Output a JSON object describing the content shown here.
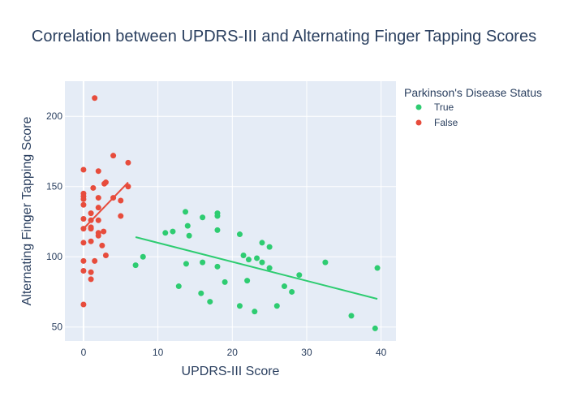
{
  "chart_data": {
    "type": "scatter",
    "title": "Correlation between UPDRS-III and Alternating Finger Tapping Scores",
    "xlabel": "UPDRS-III Score",
    "ylabel": "Alternating Finger Tapping Score",
    "xlim": [
      -2.5,
      42
    ],
    "ylim": [
      40,
      225
    ],
    "xticks": [
      0,
      10,
      20,
      30,
      40
    ],
    "yticks": [
      50,
      100,
      150,
      200
    ],
    "grid": true,
    "legend": {
      "title": "Parkinson's Disease Status",
      "placement": "top-right"
    },
    "series": [
      {
        "name": "True",
        "color": "#2ecc71",
        "points": [
          [
            7,
            94
          ],
          [
            8,
            100
          ],
          [
            11,
            117
          ],
          [
            12,
            118
          ],
          [
            12.8,
            79
          ],
          [
            13.7,
            132
          ],
          [
            14,
            122
          ],
          [
            13.8,
            95
          ],
          [
            14.2,
            115
          ],
          [
            15.8,
            74
          ],
          [
            16,
            128
          ],
          [
            16,
            96
          ],
          [
            17,
            68
          ],
          [
            18,
            131
          ],
          [
            18,
            129
          ],
          [
            18,
            119
          ],
          [
            18,
            93
          ],
          [
            19,
            82
          ],
          [
            21,
            116
          ],
          [
            21,
            65
          ],
          [
            21.5,
            101
          ],
          [
            22,
            83
          ],
          [
            22.2,
            98
          ],
          [
            23,
            61
          ],
          [
            23.3,
            99
          ],
          [
            24,
            110
          ],
          [
            24,
            96
          ],
          [
            25,
            107
          ],
          [
            25,
            92
          ],
          [
            26,
            65
          ],
          [
            27,
            79
          ],
          [
            28,
            75
          ],
          [
            29,
            87
          ],
          [
            32.5,
            96
          ],
          [
            36,
            58
          ],
          [
            39.2,
            49
          ],
          [
            39.5,
            92
          ]
        ],
        "trendline": [
          [
            7,
            114
          ],
          [
            39.5,
            70
          ]
        ]
      },
      {
        "name": "False",
        "color": "#e74c3c",
        "points": [
          [
            0,
            162
          ],
          [
            0,
            145
          ],
          [
            0,
            143
          ],
          [
            0,
            141
          ],
          [
            0,
            137
          ],
          [
            0,
            127
          ],
          [
            0,
            120
          ],
          [
            0,
            110
          ],
          [
            0,
            97
          ],
          [
            0,
            90
          ],
          [
            0,
            66
          ],
          [
            1,
            131
          ],
          [
            1,
            126
          ],
          [
            1,
            121
          ],
          [
            1,
            120
          ],
          [
            1,
            111
          ],
          [
            1,
            89
          ],
          [
            1,
            84
          ],
          [
            1.3,
            149
          ],
          [
            1.5,
            97
          ],
          [
            1.5,
            213
          ],
          [
            2,
            161
          ],
          [
            2,
            142
          ],
          [
            2,
            135
          ],
          [
            2,
            126
          ],
          [
            2,
            117
          ],
          [
            2,
            115
          ],
          [
            2.5,
            108
          ],
          [
            2.7,
            118
          ],
          [
            2.8,
            152
          ],
          [
            3,
            153
          ],
          [
            3,
            101
          ],
          [
            4,
            172
          ],
          [
            4,
            142
          ],
          [
            5,
            140
          ],
          [
            5,
            129
          ],
          [
            6,
            167
          ],
          [
            6,
            150
          ]
        ],
        "trendline": [
          [
            0,
            120
          ],
          [
            6,
            153
          ]
        ]
      }
    ]
  }
}
